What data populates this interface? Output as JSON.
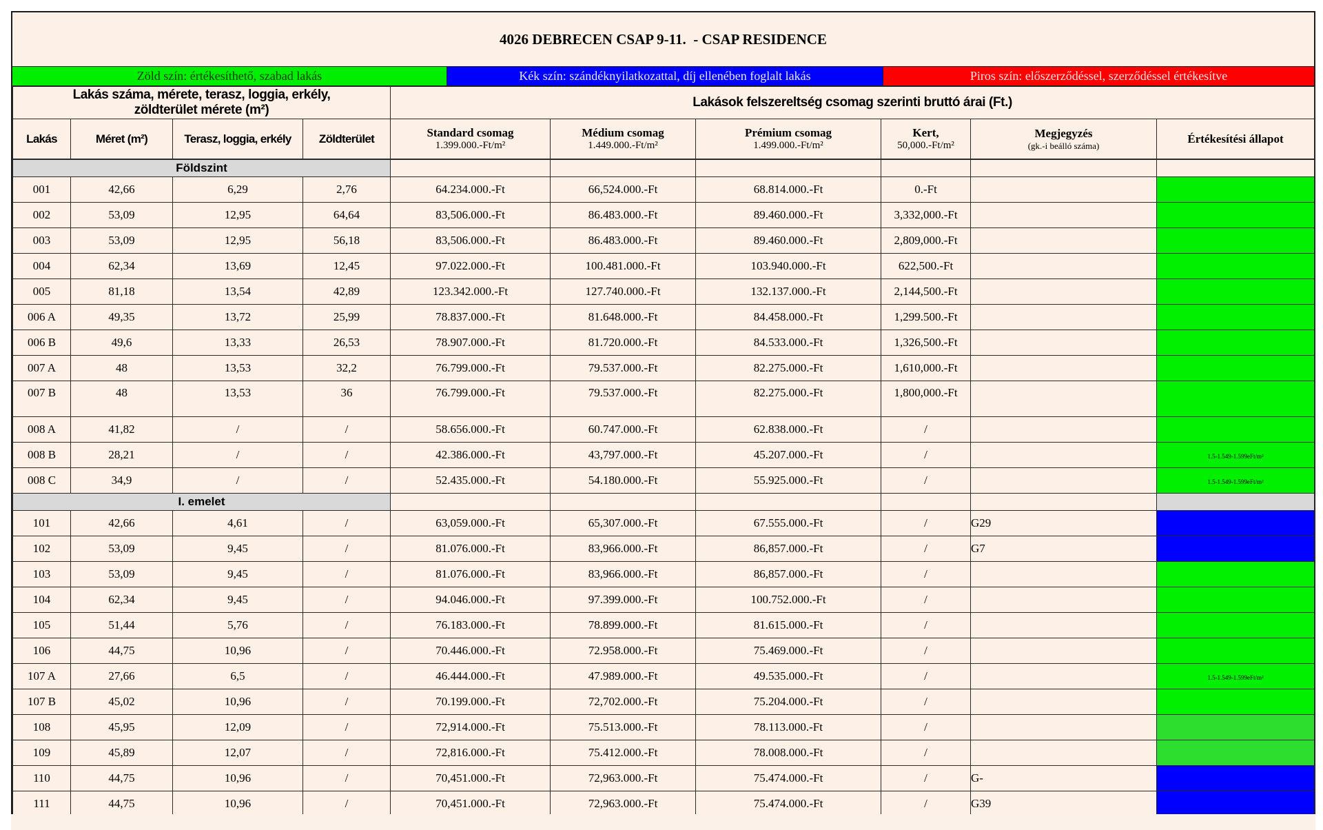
{
  "title": "4026 DEBRECEN CSAP 9-11.  - CSAP RESIDENCE",
  "legend": [
    {
      "label": "Zöld szín: értékesíthető, szabad lakás",
      "color": "#00EE00",
      "text_color": "#123A00"
    },
    {
      "label": "Kék szín: szándéknyilatkozattal, díj ellenében foglalt lakás",
      "color": "#0000FF",
      "text_color": "#E9E9FF"
    },
    {
      "label": "Piros szín: előszerződéssel, szerződéssel értékesítve",
      "color": "#FF0000",
      "text_color": "#FFE2E2"
    }
  ],
  "group_headers": {
    "left_line1": "Lakás száma, mérete, terasz, loggia, erkély,",
    "left_line2": "zöldterület mérete (m²)",
    "right": "Lakások felszereltség csomag szerinti bruttó árai (Ft.)"
  },
  "columns": [
    {
      "title": "Lakás",
      "subtitle": ""
    },
    {
      "title": "Méret (m²)",
      "subtitle": ""
    },
    {
      "title": "Terasz, loggia, erkély",
      "subtitle": ""
    },
    {
      "title": "Zöldterület",
      "subtitle": ""
    },
    {
      "title": "Standard csomag",
      "subtitle": "1.399.000.-Ft/m²"
    },
    {
      "title": "Médium csomag",
      "subtitle": "1.449.000.-Ft/m²"
    },
    {
      "title": "Prémium csomag",
      "subtitle": "1.499.000.-Ft/m²"
    },
    {
      "title": "Kert,",
      "subtitle": "50,000.-Ft/m²"
    },
    {
      "title": "Megjegyzés",
      "subtitle": "(gk.-i beálló száma)"
    },
    {
      "title": "Értékesítési állapot",
      "subtitle": ""
    }
  ],
  "status_colors": {
    "green": "#00F000",
    "green2": "#2EDE2E",
    "blue": "#0000FF",
    "red": "#FF0000",
    "gray": "#D9D9D9"
  },
  "sections": [
    {
      "label": "Földszint",
      "status": "",
      "rows": [
        {
          "lakas": "001",
          "meret": "42,66",
          "terasz": "6,29",
          "zoldterulet": "2,76",
          "standard": "64.234.000.-Ft",
          "medium": "66,524.000.-Ft",
          "premium": "68.814.000.-Ft",
          "kert": "0.-Ft",
          "megjegyzes": "",
          "status": "green",
          "status_note": ""
        },
        {
          "lakas": "002",
          "meret": "53,09",
          "terasz": "12,95",
          "zoldterulet": "64,64",
          "standard": "83,506.000.-Ft",
          "medium": "86.483.000.-Ft",
          "premium": "89.460.000.-Ft",
          "kert": "3,332,000.-Ft",
          "megjegyzes": "",
          "status": "green",
          "status_note": ""
        },
        {
          "lakas": "003",
          "meret": "53,09",
          "terasz": "12,95",
          "zoldterulet": "56,18",
          "standard": "83,506.000.-Ft",
          "medium": "86.483.000.-Ft",
          "premium": "89.460.000.-Ft",
          "kert": "2,809,000.-Ft",
          "megjegyzes": "",
          "status": "green",
          "status_note": ""
        },
        {
          "lakas": "004",
          "meret": "62,34",
          "terasz": "13,69",
          "zoldterulet": "12,45",
          "standard": "97.022.000.-Ft",
          "medium": "100.481.000.-Ft",
          "premium": "103.940.000.-Ft",
          "kert": "622,500.-Ft",
          "megjegyzes": "",
          "status": "green",
          "status_note": ""
        },
        {
          "lakas": "005",
          "meret": "81,18",
          "terasz": "13,54",
          "zoldterulet": "42,89",
          "standard": "123.342.000.-Ft",
          "medium": "127.740.000.-Ft",
          "premium": "132.137.000.-Ft",
          "kert": "2,144,500.-Ft",
          "megjegyzes": "",
          "status": "green",
          "status_note": ""
        },
        {
          "lakas": "006 A",
          "meret": "49,35",
          "terasz": "13,72",
          "zoldterulet": "25,99",
          "standard": "78.837.000.-Ft",
          "medium": "81.648.000.-Ft",
          "premium": "84.458.000.-Ft",
          "kert": "1,299.500.-Ft",
          "megjegyzes": "",
          "status": "green",
          "status_note": ""
        },
        {
          "lakas": "006 B",
          "meret": "49,6",
          "terasz": "13,33",
          "zoldterulet": "26,53",
          "standard": "78.907.000.-Ft",
          "medium": "81.720.000.-Ft",
          "premium": "84.533.000.-Ft",
          "kert": "1,326,500.-Ft",
          "megjegyzes": "",
          "status": "green",
          "status_note": ""
        },
        {
          "lakas": "007 A",
          "meret": "48",
          "terasz": "13,53",
          "zoldterulet": "32,2",
          "standard": "76.799.000.-Ft",
          "medium": "79.537.000.-Ft",
          "premium": "82.275.000.-Ft",
          "kert": "1,610,000.-Ft",
          "megjegyzes": "",
          "status": "green",
          "status_note": ""
        },
        {
          "lakas": "007 B",
          "meret": "48",
          "terasz": "13,53",
          "zoldterulet": "36",
          "standard": "76.799.000.-Ft",
          "medium": "79.537.000.-Ft",
          "premium": "82.275.000.-Ft",
          "kert": "1,800,000.-Ft",
          "megjegyzes": "",
          "status": "green",
          "status_note": "",
          "tall": true
        },
        {
          "lakas": "008 A",
          "meret": "41,82",
          "terasz": "/",
          "zoldterulet": "/",
          "standard": "58.656.000.-Ft",
          "medium": "60.747.000.-Ft",
          "premium": "62.838.000.-Ft",
          "kert": "/",
          "megjegyzes": "",
          "status": "green",
          "status_note": ""
        },
        {
          "lakas": "008 B",
          "meret": "28,21",
          "terasz": "/",
          "zoldterulet": "/",
          "standard": "42.386.000.-Ft",
          "medium": "43,797.000.-Ft",
          "premium": "45.207.000.-Ft",
          "kert": "/",
          "megjegyzes": "",
          "status": "green",
          "status_note": "1.5-1.549-1.599eFt/m²"
        },
        {
          "lakas": "008 C",
          "meret": "34,9",
          "terasz": "/",
          "zoldterulet": "/",
          "standard": "52.435.000.-Ft",
          "medium": "54.180.000.-Ft",
          "premium": "55.925.000.-Ft",
          "kert": "/",
          "megjegyzes": "",
          "status": "green",
          "status_note": "1.5-1.549-1.599eFt/m²"
        }
      ]
    },
    {
      "label": "I. emelet",
      "status": "gray",
      "rows": [
        {
          "lakas": "101",
          "meret": "42,66",
          "terasz": "4,61",
          "zoldterulet": "/",
          "standard": "63,059.000.-Ft",
          "medium": "65,307.000.-Ft",
          "premium": "67.555.000.-Ft",
          "kert": "/",
          "megjegyzes": "G29",
          "status": "blue",
          "status_note": ""
        },
        {
          "lakas": "102",
          "meret": "53,09",
          "terasz": "9,45",
          "zoldterulet": "/",
          "standard": "81.076.000.-Ft",
          "medium": "83,966.000.-Ft",
          "premium": "86,857.000.-Ft",
          "kert": "/",
          "megjegyzes": "G7",
          "status": "blue",
          "status_note": ""
        },
        {
          "lakas": "103",
          "meret": "53,09",
          "terasz": "9,45",
          "zoldterulet": "/",
          "standard": "81.076.000.-Ft",
          "medium": "83,966.000.-Ft",
          "premium": "86,857.000.-Ft",
          "kert": "/",
          "megjegyzes": "",
          "status": "green",
          "status_note": ""
        },
        {
          "lakas": "104",
          "meret": "62,34",
          "terasz": "9,45",
          "zoldterulet": "/",
          "standard": "94.046.000.-Ft",
          "medium": "97.399.000.-Ft",
          "premium": "100.752.000.-Ft",
          "kert": "/",
          "megjegyzes": "",
          "status": "green",
          "status_note": ""
        },
        {
          "lakas": "105",
          "meret": "51,44",
          "terasz": "5,76",
          "zoldterulet": "/",
          "standard": "76.183.000.-Ft",
          "medium": "78.899.000.-Ft",
          "premium": "81.615.000.-Ft",
          "kert": "/",
          "megjegyzes": "",
          "status": "green",
          "status_note": ""
        },
        {
          "lakas": "106",
          "meret": "44,75",
          "terasz": "10,96",
          "zoldterulet": "/",
          "standard": "70.446.000.-Ft",
          "medium": "72.958.000.-Ft",
          "premium": "75.469.000.-Ft",
          "kert": "/",
          "megjegyzes": "",
          "status": "green",
          "status_note": ""
        },
        {
          "lakas": "107 A",
          "meret": "27,66",
          "terasz": "6,5",
          "zoldterulet": "/",
          "standard": "46.444.000.-Ft",
          "medium": "47.989.000.-Ft",
          "premium": "49.535.000.-Ft",
          "kert": "/",
          "megjegyzes": "",
          "status": "green",
          "status_note": "1.5-1.549-1.599eFt/m²"
        },
        {
          "lakas": "107 B",
          "meret": "45,02",
          "terasz": "10,96",
          "zoldterulet": "/",
          "standard": "70.199.000.-Ft",
          "medium": "72,702.000.-Ft",
          "premium": "75.204.000.-Ft",
          "kert": "/",
          "megjegyzes": "",
          "status": "green",
          "status_note": ""
        },
        {
          "lakas": "108",
          "meret": "45,95",
          "terasz": "12,09",
          "zoldterulet": "/",
          "standard": "72,914.000.-Ft",
          "medium": "75.513.000.-Ft",
          "premium": "78.113.000.-Ft",
          "kert": "/",
          "megjegyzes": "",
          "status": "green2",
          "status_note": ""
        },
        {
          "lakas": "109",
          "meret": "45,89",
          "terasz": "12,07",
          "zoldterulet": "/",
          "standard": "72,816.000.-Ft",
          "medium": "75.412.000.-Ft",
          "premium": "78.008.000.-Ft",
          "kert": "/",
          "megjegyzes": "",
          "status": "green2",
          "status_note": ""
        },
        {
          "lakas": "110",
          "meret": "44,75",
          "terasz": "10,96",
          "zoldterulet": "/",
          "standard": "70,451.000.-Ft",
          "medium": "72,963.000.-Ft",
          "premium": "75.474.000.-Ft",
          "kert": "/",
          "megjegyzes": "G-",
          "status": "blue",
          "status_note": ""
        },
        {
          "lakas": "111",
          "meret": "44,75",
          "terasz": "10,96",
          "zoldterulet": "/",
          "standard": "70,451.000.-Ft",
          "medium": "72,963.000.-Ft",
          "premium": "75.474.000.-Ft",
          "kert": "/",
          "megjegyzes": " G39",
          "status": "blue",
          "status_note": ""
        }
      ]
    }
  ]
}
